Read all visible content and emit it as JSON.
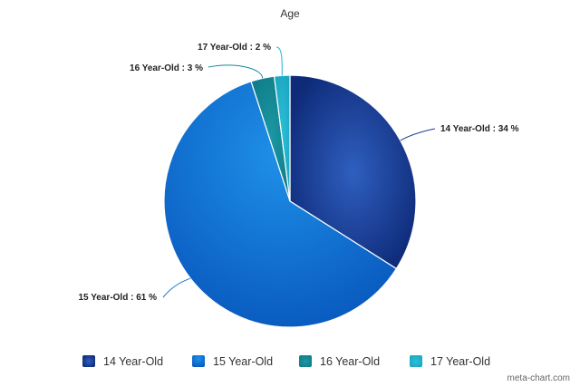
{
  "chart_data": {
    "type": "pie",
    "title": "Age",
    "categories": [
      "14 Year-Old",
      "15 Year-Old",
      "16 Year-Old",
      "17 Year-Old"
    ],
    "values": [
      34,
      61,
      3,
      2
    ],
    "unit": "%",
    "colors": [
      "#1a3d96",
      "#1577d6",
      "#138a96",
      "#22b3cc"
    ],
    "legend_position": "bottom",
    "data_labels": [
      "14 Year-Old : 34 %",
      "15 Year-Old : 61 %",
      "16 Year-Old : 3 %",
      "17 Year-Old : 2 %"
    ]
  },
  "credit": "meta-chart.com"
}
